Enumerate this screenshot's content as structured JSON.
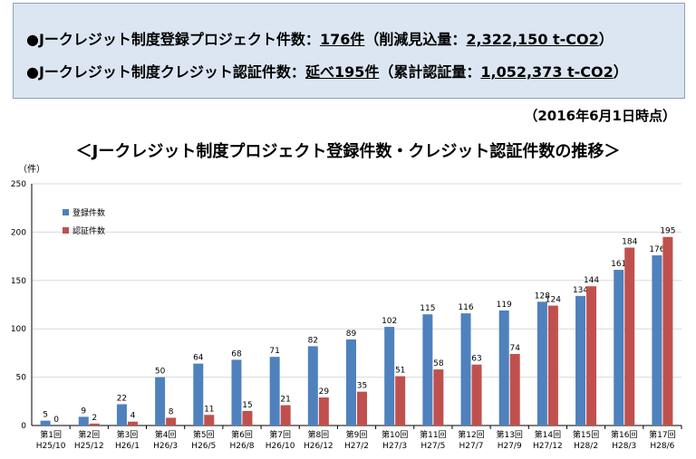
{
  "summary": {
    "line1": {
      "bullet": "●",
      "label": "Jークレジット制度登録プロジェクト件数：",
      "value": "176件",
      "detail_prefix": "（削減見込量：",
      "detail_value": "2,322,150 t-CO2",
      "detail_suffix": "）"
    },
    "line2": {
      "bullet": "●",
      "label": "Jークレジット制度クレジット認証件数：",
      "value": "延べ195件",
      "detail_prefix": "（累計認証量：",
      "detail_value": "1,052,373 t-CO2",
      "detail_suffix": "）"
    }
  },
  "as_of": "（2016年6月1日時点）",
  "colors": {
    "registered": "#4f81bd",
    "certified": "#c0504d",
    "grid": "#d9d9d9",
    "summary_bg": "#dce6f2"
  },
  "chart_data": {
    "type": "bar",
    "title": "＜Jークレジット制度プロジェクト登録件数・クレジット認証件数の推移＞",
    "ylabel": "（件）",
    "ylim": [
      0,
      250
    ],
    "yticks": [
      0,
      50,
      100,
      150,
      200,
      250
    ],
    "legend_position": "top-left",
    "categories": [
      {
        "round": "第1回",
        "date": "H25/10"
      },
      {
        "round": "第2回",
        "date": "H25/12"
      },
      {
        "round": "第3回",
        "date": "H26/1"
      },
      {
        "round": "第4回",
        "date": "H26/3"
      },
      {
        "round": "第5回",
        "date": "H26/5"
      },
      {
        "round": "第6回",
        "date": "H26/8"
      },
      {
        "round": "第7回",
        "date": "H26/10"
      },
      {
        "round": "第8回",
        "date": "H26/12"
      },
      {
        "round": "第9回",
        "date": "H27/2"
      },
      {
        "round": "第10回",
        "date": "H27/3"
      },
      {
        "round": "第11回",
        "date": "H27/5"
      },
      {
        "round": "第12回",
        "date": "H27/7"
      },
      {
        "round": "第13回",
        "date": "H27/9"
      },
      {
        "round": "第14回",
        "date": "H27/12"
      },
      {
        "round": "第15回",
        "date": "H28/2"
      },
      {
        "round": "第16回",
        "date": "H28/3"
      },
      {
        "round": "第17回",
        "date": "H28/6"
      }
    ],
    "series": [
      {
        "name": "登録件数",
        "color": "#4f81bd",
        "values": [
          5,
          9,
          22,
          50,
          64,
          68,
          71,
          82,
          89,
          102,
          115,
          116,
          119,
          128,
          134,
          161,
          176
        ]
      },
      {
        "name": "認証件数",
        "color": "#c0504d",
        "values": [
          0,
          2,
          4,
          8,
          11,
          15,
          21,
          29,
          35,
          51,
          58,
          63,
          74,
          124,
          144,
          184,
          195
        ]
      }
    ]
  }
}
